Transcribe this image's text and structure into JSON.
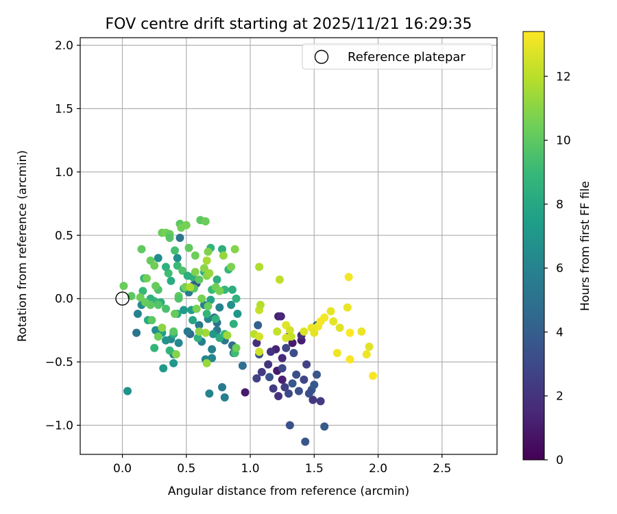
{
  "chart_data": {
    "type": "scatter",
    "title": "FOV centre drift starting at 2025/11/21 16:29:35",
    "xlabel": "Angular distance from reference (arcmin)",
    "ylabel": "Rotation from reference (arcmin)",
    "xlim": [
      -0.33,
      2.93
    ],
    "ylim": [
      -1.23,
      2.06
    ],
    "xticks": [
      0.0,
      0.5,
      1.0,
      1.5,
      2.0,
      2.5
    ],
    "xtick_labels": [
      "0.0",
      "0.5",
      "1.0",
      "1.5",
      "2.0",
      "2.5"
    ],
    "yticks": [
      -1.0,
      -0.5,
      0.0,
      0.5,
      1.0,
      1.5,
      2.0
    ],
    "ytick_labels": [
      "−1.0",
      "−0.5",
      "0.0",
      "0.5",
      "1.0",
      "1.5",
      "2.0"
    ],
    "grid": true,
    "legend": {
      "position": "top-right",
      "entries": [
        "Reference platepar"
      ]
    },
    "reference_point": {
      "x": 0.0,
      "y": 0.0,
      "label": "Reference platepar"
    },
    "colorbar": {
      "label": "Hours from first FF file",
      "range": [
        0,
        13.4
      ],
      "ticks": [
        0,
        2,
        4,
        6,
        8,
        10,
        12
      ],
      "tick_labels": [
        "0",
        "2",
        "4",
        "6",
        "8",
        "10",
        "12"
      ],
      "colormap": "viridis"
    },
    "colormap_stops": [
      "#440154",
      "#482878",
      "#3e4989",
      "#31688e",
      "#26828e",
      "#1f9e89",
      "#35b779",
      "#6ece58",
      "#b5de2b",
      "#fde725"
    ],
    "points": [
      [
        1.22,
        -0.14,
        1.2
      ],
      [
        1.24,
        -0.14,
        1.5
      ],
      [
        1.2,
        -0.4,
        1.3
      ],
      [
        1.16,
        -0.42,
        2.0
      ],
      [
        1.3,
        -0.3,
        1.4
      ],
      [
        1.4,
        -0.33,
        1.1
      ],
      [
        1.33,
        -0.35,
        1.0
      ],
      [
        1.25,
        -0.47,
        1.6
      ],
      [
        1.21,
        -0.57,
        1.0
      ],
      [
        1.14,
        -0.52,
        2.1
      ],
      [
        1.09,
        -0.58,
        2.4
      ],
      [
        1.05,
        -0.63,
        2.7
      ],
      [
        0.96,
        -0.74,
        1.0
      ],
      [
        1.25,
        -0.64,
        1.2
      ],
      [
        1.27,
        -0.7,
        2.5
      ],
      [
        1.22,
        -0.77,
        2.0
      ],
      [
        1.3,
        -0.75,
        3.0
      ],
      [
        1.38,
        -0.73,
        3.3
      ],
      [
        1.42,
        -0.64,
        2.8
      ],
      [
        1.48,
        -0.72,
        3.5
      ],
      [
        1.52,
        -0.6,
        3.6
      ],
      [
        1.49,
        -0.8,
        2.2
      ],
      [
        1.55,
        -0.81,
        2.3
      ],
      [
        1.44,
        -0.52,
        2.6
      ],
      [
        1.34,
        -0.43,
        3.1
      ],
      [
        1.28,
        -0.39,
        2.9
      ],
      [
        1.05,
        -0.35,
        1.8
      ],
      [
        1.07,
        -0.44,
        3.4
      ],
      [
        1.06,
        -0.21,
        4.2
      ],
      [
        1.31,
        -1.0,
        3.4
      ],
      [
        1.43,
        -1.13,
        3.6
      ],
      [
        1.58,
        -1.01,
        3.9
      ],
      [
        1.36,
        -0.6,
        3.2
      ],
      [
        1.18,
        -0.71,
        2.4
      ],
      [
        1.15,
        -0.62,
        3.5
      ],
      [
        1.33,
        -0.67,
        3.7
      ],
      [
        1.5,
        -0.68,
        3.8
      ],
      [
        1.46,
        -0.75,
        3.3
      ],
      [
        1.25,
        -0.55,
        3.0
      ],
      [
        1.4,
        -0.29,
        1.9
      ],
      [
        1.52,
        -0.21,
        4.6
      ],
      [
        0.78,
        -0.7,
        5.5
      ],
      [
        0.8,
        -0.78,
        5.8
      ],
      [
        0.68,
        -0.75,
        6.0
      ],
      [
        0.94,
        -0.53,
        5.0
      ],
      [
        0.87,
        -0.43,
        5.1
      ],
      [
        0.86,
        -0.37,
        4.8
      ],
      [
        0.8,
        -0.33,
        5.2
      ],
      [
        0.74,
        -0.25,
        5.5
      ],
      [
        0.74,
        -0.19,
        5.0
      ],
      [
        0.72,
        -0.15,
        4.5
      ],
      [
        0.7,
        -0.4,
        5.9
      ],
      [
        0.7,
        -0.47,
        6.2
      ],
      [
        0.65,
        -0.48,
        6.1
      ],
      [
        0.62,
        -0.34,
        5.7
      ],
      [
        0.6,
        -0.21,
        5.4
      ],
      [
        0.53,
        -0.28,
        4.6
      ],
      [
        0.51,
        -0.26,
        5.5
      ],
      [
        0.44,
        -0.35,
        6.3
      ],
      [
        0.4,
        -0.44,
        6.0
      ],
      [
        0.38,
        -0.32,
        6.4
      ],
      [
        0.34,
        -0.33,
        6.9
      ],
      [
        0.32,
        -0.55,
        7.2
      ],
      [
        0.4,
        -0.51,
        7.0
      ],
      [
        0.31,
        -0.27,
        7.5
      ],
      [
        0.26,
        -0.25,
        6.6
      ],
      [
        0.11,
        -0.27,
        5.2
      ],
      [
        0.04,
        -0.73,
        6.8
      ],
      [
        0.12,
        -0.12,
        6.0
      ],
      [
        0.15,
        -0.05,
        6.4
      ],
      [
        0.28,
        0.32,
        6.5
      ],
      [
        0.43,
        0.32,
        6.6
      ],
      [
        0.45,
        0.48,
        5.2
      ],
      [
        0.52,
        0.05,
        5.5
      ],
      [
        0.56,
        0.11,
        4.6
      ],
      [
        0.58,
        0.12,
        3.8
      ],
      [
        0.64,
        -0.05,
        5.7
      ],
      [
        0.67,
        -0.16,
        6.2
      ],
      [
        0.76,
        -0.07,
        6.0
      ],
      [
        0.85,
        -0.05,
        6.8
      ],
      [
        0.9,
        -0.12,
        7.0
      ],
      [
        0.71,
        -0.28,
        7.1
      ],
      [
        0.69,
        -0.01,
        7.8
      ],
      [
        0.69,
        0.4,
        8.7
      ],
      [
        0.78,
        0.39,
        8.4
      ],
      [
        0.83,
        0.23,
        8.8
      ],
      [
        0.74,
        0.15,
        8.5
      ],
      [
        0.8,
        0.07,
        8.9
      ],
      [
        0.7,
        0.07,
        9.0
      ],
      [
        0.55,
        0.17,
        8.6
      ],
      [
        0.48,
        0.08,
        8.1
      ],
      [
        0.38,
        0.14,
        8.2
      ],
      [
        0.36,
        0.2,
        9.2
      ],
      [
        0.3,
        -0.03,
        8.4
      ],
      [
        0.25,
        -0.02,
        8.9
      ],
      [
        0.28,
        0.07,
        9.6
      ],
      [
        0.43,
        -0.12,
        8.0
      ],
      [
        0.48,
        -0.09,
        7.2
      ],
      [
        0.54,
        -0.09,
        7.5
      ],
      [
        0.55,
        -0.17,
        7.9
      ],
      [
        0.59,
        -0.31,
        8.6
      ],
      [
        0.37,
        -0.41,
        8.8
      ],
      [
        0.4,
        -0.28,
        8.2
      ],
      [
        0.25,
        -0.39,
        8.8
      ],
      [
        0.2,
        -0.17,
        8.1
      ],
      [
        0.22,
        0.0,
        8.5
      ],
      [
        0.16,
        0.06,
        9.0
      ],
      [
        0.17,
        0.16,
        8.9
      ],
      [
        0.34,
        0.25,
        8.6
      ],
      [
        0.41,
        0.38,
        9.4
      ],
      [
        0.43,
        0.26,
        9.1
      ],
      [
        0.47,
        0.22,
        9.6
      ],
      [
        0.51,
        0.18,
        8.4
      ],
      [
        0.64,
        0.21,
        8.2
      ],
      [
        0.66,
        -0.12,
        8.8
      ],
      [
        0.73,
        -0.16,
        8.7
      ],
      [
        0.76,
        -0.31,
        8.3
      ],
      [
        0.8,
        -0.28,
        8.9
      ],
      [
        0.87,
        -0.2,
        8.5
      ],
      [
        0.88,
        -0.43,
        9.2
      ],
      [
        0.86,
        0.07,
        8.4
      ],
      [
        0.89,
        0.0,
        8.6
      ],
      [
        0.22,
        0.3,
        10.2
      ],
      [
        0.25,
        0.26,
        10.4
      ],
      [
        0.31,
        0.52,
        10.3
      ],
      [
        0.34,
        0.52,
        10.6
      ],
      [
        0.37,
        0.51,
        10.2
      ],
      [
        0.37,
        0.48,
        9.8
      ],
      [
        0.45,
        0.59,
        9.9
      ],
      [
        0.46,
        0.56,
        10.5
      ],
      [
        0.5,
        0.58,
        10.6
      ],
      [
        0.61,
        0.62,
        10.0
      ],
      [
        0.65,
        0.61,
        10.3
      ],
      [
        0.52,
        0.4,
        10.1
      ],
      [
        0.57,
        0.34,
        10.4
      ],
      [
        0.67,
        0.37,
        10.8
      ],
      [
        0.64,
        0.24,
        11.0
      ],
      [
        0.66,
        0.18,
        10.9
      ],
      [
        0.6,
        0.15,
        10.0
      ],
      [
        0.49,
        0.09,
        10.6
      ],
      [
        0.56,
        0.08,
        9.8
      ],
      [
        0.44,
        0.02,
        10.1
      ],
      [
        0.44,
        0.0,
        9.7
      ],
      [
        0.41,
        -0.12,
        10.2
      ],
      [
        0.34,
        -0.08,
        9.5
      ],
      [
        0.28,
        -0.05,
        9.8
      ],
      [
        0.22,
        -0.05,
        10.0
      ],
      [
        0.18,
        -0.03,
        10.2
      ],
      [
        0.14,
        0.01,
        10.4
      ],
      [
        0.15,
        0.39,
        10.1
      ],
      [
        0.01,
        0.1,
        10.3
      ],
      [
        0.07,
        0.02,
        10.0
      ],
      [
        0.19,
        0.16,
        10.5
      ],
      [
        0.26,
        0.1,
        10.2
      ],
      [
        0.23,
        -0.17,
        10.0
      ],
      [
        0.28,
        -0.3,
        10.4
      ],
      [
        0.31,
        -0.23,
        11.0
      ],
      [
        0.4,
        -0.26,
        9.9
      ],
      [
        0.42,
        -0.44,
        10.9
      ],
      [
        0.57,
        0.21,
        10.8
      ],
      [
        0.73,
        0.09,
        10.4
      ],
      [
        0.76,
        0.06,
        10.6
      ],
      [
        0.85,
        0.25,
        10.7
      ],
      [
        0.88,
        0.39,
        10.9
      ],
      [
        0.89,
        -0.39,
        10.4
      ],
      [
        0.82,
        -0.29,
        11.4
      ],
      [
        0.67,
        -0.06,
        10.3
      ],
      [
        0.62,
        0.0,
        10.6
      ],
      [
        0.65,
        -0.27,
        11.5
      ],
      [
        0.6,
        -0.26,
        11.0
      ],
      [
        0.66,
        -0.51,
        11.3
      ],
      [
        0.66,
        0.3,
        11.6
      ],
      [
        0.79,
        0.34,
        11.2
      ],
      [
        0.68,
        0.2,
        11.3
      ],
      [
        0.53,
        0.09,
        11.7
      ],
      [
        0.58,
        -0.08,
        10.7
      ],
      [
        1.07,
        0.25,
        11.8
      ],
      [
        1.07,
        -0.09,
        12.3
      ],
      [
        1.08,
        -0.05,
        11.9
      ],
      [
        1.23,
        0.15,
        12.1
      ],
      [
        1.03,
        -0.28,
        12.0
      ],
      [
        1.07,
        -0.3,
        12.5
      ],
      [
        1.07,
        -0.42,
        12.4
      ],
      [
        1.21,
        -0.26,
        12.2
      ],
      [
        1.28,
        -0.21,
        12.8
      ],
      [
        1.31,
        -0.25,
        12.5
      ],
      [
        1.32,
        -0.3,
        12.2
      ],
      [
        1.42,
        -0.26,
        12.7
      ],
      [
        1.48,
        -0.23,
        13.0
      ],
      [
        1.5,
        -0.27,
        12.9
      ],
      [
        1.53,
        -0.22,
        13.1
      ],
      [
        1.55,
        -0.18,
        13.3
      ],
      [
        1.58,
        -0.15,
        13.2
      ],
      [
        1.63,
        -0.1,
        12.9
      ],
      [
        1.65,
        -0.18,
        12.9
      ],
      [
        1.68,
        -0.43,
        13.1
      ],
      [
        1.7,
        -0.23,
        12.8
      ],
      [
        1.76,
        -0.07,
        13.0
      ],
      [
        1.77,
        0.17,
        13.2
      ],
      [
        1.78,
        -0.27,
        13.4
      ],
      [
        1.78,
        -0.48,
        13.3
      ],
      [
        1.87,
        -0.26,
        13.0
      ],
      [
        1.91,
        -0.44,
        13.1
      ],
      [
        1.93,
        -0.38,
        12.8
      ],
      [
        1.96,
        -0.61,
        13.3
      ],
      [
        1.28,
        -0.31,
        12.6
      ]
    ]
  }
}
